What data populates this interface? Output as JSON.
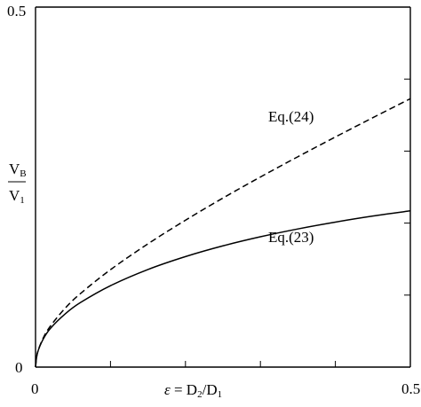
{
  "chart_data": {
    "type": "line",
    "title": "",
    "xlabel": {
      "epsilon": "ε",
      "equals": "=",
      "num": "D",
      "num_sub": "2",
      "slash": "/",
      "den": "D",
      "den_sub": "1"
    },
    "ylabel": {
      "num": "V",
      "num_sub": "B",
      "den": "V",
      "den_sub": "1"
    },
    "xlim": [
      0,
      0.5
    ],
    "ylim": [
      0,
      0.5
    ],
    "x_tick_labels": [
      "0",
      "0.50"
    ],
    "y_tick_labels": [
      "0",
      "0.5"
    ],
    "x_minor_ticks": [
      0.1,
      0.2,
      0.3,
      0.4
    ],
    "y_minor_ticks": [
      0.1,
      0.2,
      0.3,
      0.4
    ],
    "grid": false,
    "legend": "none",
    "series": [
      {
        "name": "Eq.(23)",
        "style": "solid",
        "color": "#000000",
        "x": [
          0,
          0.0025,
          0.01,
          0.02,
          0.04,
          0.06,
          0.1,
          0.15,
          0.2,
          0.25,
          0.3,
          0.35,
          0.4,
          0.45,
          0.5
        ],
        "y": [
          0,
          0.0193,
          0.0384,
          0.0539,
          0.0743,
          0.0897,
          0.1131,
          0.1356,
          0.1535,
          0.1684,
          0.181,
          0.1919,
          0.2014,
          0.2098,
          0.217
        ]
      },
      {
        "name": "Eq.(24)",
        "style": "dashed",
        "color": "#000000",
        "x": [
          0,
          0.0025,
          0.01,
          0.02,
          0.04,
          0.06,
          0.1,
          0.15,
          0.2,
          0.25,
          0.3,
          0.35,
          0.4,
          0.45,
          0.5
        ],
        "y": [
          0,
          0.0196,
          0.0398,
          0.0572,
          0.0823,
          0.1022,
          0.1353,
          0.1712,
          0.204,
          0.2348,
          0.264,
          0.2922,
          0.3196,
          0.3464,
          0.3728
        ]
      }
    ]
  }
}
